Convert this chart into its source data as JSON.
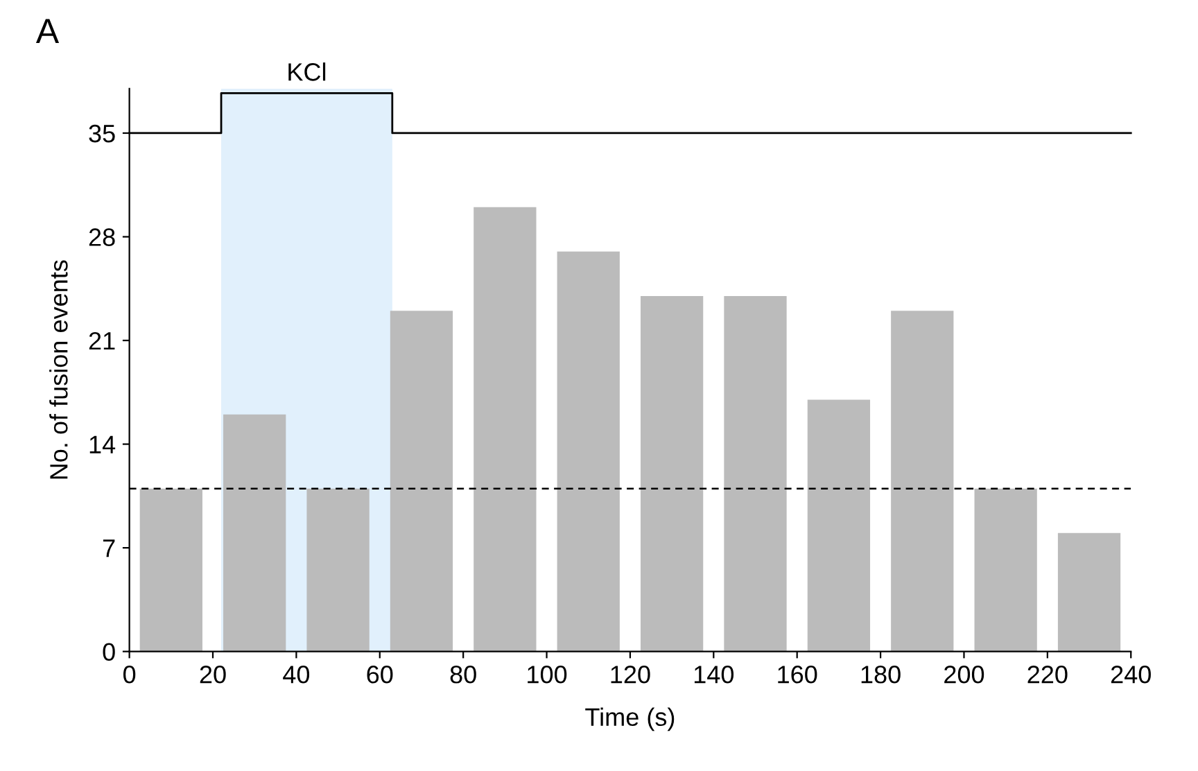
{
  "chart_data": {
    "type": "bar",
    "xlabel": "Time (s)",
    "ylabel": "No. of fusion events",
    "annotations": [
      "A"
    ],
    "x": [
      10,
      30,
      50,
      70,
      90,
      110,
      130,
      150,
      170,
      190,
      210,
      230
    ],
    "series": [
      {
        "color": "#bbbbbb",
        "values": [
          11,
          16,
          11,
          23,
          30,
          27,
          24,
          24,
          17,
          23,
          11,
          8
        ]
      },
      {
        "type": "step",
        "color": "#000000",
        "x": [
          0,
          22,
          63,
          240
        ],
        "values": [
          35,
          37.7,
          35,
          35
        ]
      }
    ],
    "bands": [
      {
        "axis": "x",
        "from": 22,
        "to": 63,
        "label": "KCl",
        "color": "#e1f0fc"
      }
    ],
    "ref_lines": [
      {
        "axis": "y",
        "value": 11,
        "color": "#000000",
        "line_style": "dashed"
      }
    ],
    "xlim": [
      0,
      240
    ],
    "xticks": [
      0,
      20,
      40,
      60,
      80,
      100,
      120,
      140,
      160,
      180,
      200,
      220,
      240
    ],
    "ylim": [
      0,
      38
    ],
    "yticks": [
      0,
      7,
      14,
      21,
      28,
      35
    ],
    "grid": false,
    "legend": false
  }
}
